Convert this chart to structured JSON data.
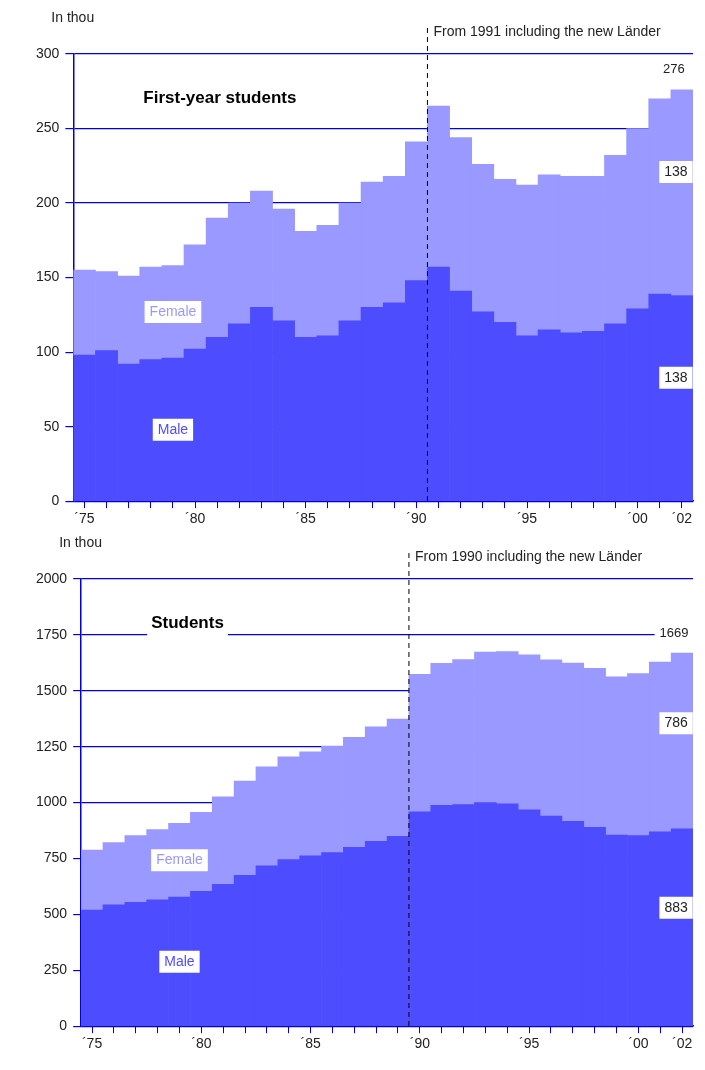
{
  "chart_data": [
    {
      "type": "bar",
      "title": "First-year students",
      "ylabel": "In thou",
      "stacked": true,
      "grid": "y",
      "x": [
        "1975",
        "1976",
        "1977",
        "1978",
        "1979",
        "1980",
        "1981",
        "1982",
        "1983",
        "1984",
        "1985",
        "1986",
        "1987",
        "1988",
        "1989",
        "1990",
        "1991",
        "1992",
        "1993",
        "1994",
        "1995",
        "1996",
        "1997",
        "1998",
        "1999",
        "2000",
        "2001",
        "2002"
      ],
      "xlim": [
        "1974-07",
        "2002-07"
      ],
      "xticks": [
        {
          "value": "1975",
          "label": "´75"
        },
        {
          "value": "1976",
          "label": null
        },
        {
          "value": "1977",
          "label": null
        },
        {
          "value": "1978",
          "label": null
        },
        {
          "value": "1979",
          "label": null
        },
        {
          "value": "1980",
          "label": "´80"
        },
        {
          "value": "1981",
          "label": null
        },
        {
          "value": "1982",
          "label": null
        },
        {
          "value": "1983",
          "label": null
        },
        {
          "value": "1984",
          "label": null
        },
        {
          "value": "1985",
          "label": "´85"
        },
        {
          "value": "1986",
          "label": null
        },
        {
          "value": "1987",
          "label": null
        },
        {
          "value": "1988",
          "label": null
        },
        {
          "value": "1989",
          "label": null
        },
        {
          "value": "1990",
          "label": "´90"
        },
        {
          "value": "1991",
          "label": null
        },
        {
          "value": "1992",
          "label": null
        },
        {
          "value": "1993",
          "label": null
        },
        {
          "value": "1994",
          "label": null
        },
        {
          "value": "1995",
          "label": "´95"
        },
        {
          "value": "1996",
          "label": null
        },
        {
          "value": "1997",
          "label": null
        },
        {
          "value": "1998",
          "label": null
        },
        {
          "value": "1999",
          "label": null
        },
        {
          "value": "2000",
          "label": "´00"
        },
        {
          "value": "2001",
          "label": null
        },
        {
          "value": "2002",
          "label": "´02"
        }
      ],
      "ylim": [
        0,
        300
      ],
      "yticks": [
        0,
        50,
        100,
        150,
        200,
        250,
        300
      ],
      "ref_lines": [
        {
          "axis": "x",
          "value": "1990-07",
          "label": "From 1991 including the new Länder",
          "line_style": "dashed",
          "color": "#000000"
        }
      ],
      "series": [
        {
          "name": "Male",
          "color": "#4d4dff",
          "values": [
            98,
            101,
            92,
            95,
            96,
            102,
            110,
            119,
            130,
            121,
            110,
            111,
            121,
            130,
            133,
            148,
            157,
            141,
            127,
            120,
            111,
            115,
            113,
            114,
            119,
            129,
            139,
            138
          ],
          "value_labels": [
            null,
            null,
            null,
            null,
            null,
            null,
            null,
            null,
            null,
            null,
            null,
            null,
            null,
            null,
            null,
            null,
            null,
            null,
            null,
            null,
            null,
            null,
            null,
            null,
            null,
            null,
            null,
            "138"
          ]
        },
        {
          "name": "Female",
          "color": "#9999ff",
          "values": [
            57,
            53,
            59,
            62,
            62,
            70,
            80,
            81,
            78,
            75,
            71,
            74,
            79,
            84,
            85,
            93,
            108,
            103,
            99,
            96,
            101,
            104,
            105,
            104,
            113,
            121,
            131,
            138
          ],
          "value_labels": [
            null,
            null,
            null,
            null,
            null,
            null,
            null,
            null,
            null,
            null,
            null,
            null,
            null,
            null,
            null,
            null,
            null,
            null,
            null,
            null,
            null,
            null,
            null,
            null,
            null,
            null,
            null,
            "138"
          ]
        }
      ],
      "totals": [
        null,
        null,
        null,
        null,
        null,
        null,
        null,
        null,
        null,
        null,
        null,
        null,
        null,
        null,
        null,
        null,
        null,
        null,
        null,
        null,
        null,
        null,
        null,
        null,
        null,
        null,
        null,
        "276"
      ]
    },
    {
      "type": "bar",
      "title": "Students",
      "ylabel": "In thou",
      "stacked": true,
      "grid": "y",
      "x": [
        "1975",
        "1976",
        "1977",
        "1978",
        "1979",
        "1980",
        "1981",
        "1982",
        "1983",
        "1984",
        "1985",
        "1986",
        "1987",
        "1988",
        "1989",
        "1990",
        "1991",
        "1992",
        "1993",
        "1994",
        "1995",
        "1996",
        "1997",
        "1998",
        "1999",
        "2000",
        "2001",
        "2002"
      ],
      "xlim": [
        "1974-07",
        "2002-07"
      ],
      "xticks": [
        {
          "value": "1975",
          "label": "´75"
        },
        {
          "value": "1976",
          "label": null
        },
        {
          "value": "1977",
          "label": null
        },
        {
          "value": "1978",
          "label": null
        },
        {
          "value": "1979",
          "label": null
        },
        {
          "value": "1980",
          "label": "´80"
        },
        {
          "value": "1981",
          "label": null
        },
        {
          "value": "1982",
          "label": null
        },
        {
          "value": "1983",
          "label": null
        },
        {
          "value": "1984",
          "label": null
        },
        {
          "value": "1985",
          "label": "´85"
        },
        {
          "value": "1986",
          "label": null
        },
        {
          "value": "1987",
          "label": null
        },
        {
          "value": "1988",
          "label": null
        },
        {
          "value": "1989",
          "label": null
        },
        {
          "value": "1990",
          "label": "´90"
        },
        {
          "value": "1991",
          "label": null
        },
        {
          "value": "1992",
          "label": null
        },
        {
          "value": "1993",
          "label": null
        },
        {
          "value": "1994",
          "label": null
        },
        {
          "value": "1995",
          "label": "´95"
        },
        {
          "value": "1996",
          "label": null
        },
        {
          "value": "1997",
          "label": null
        },
        {
          "value": "1998",
          "label": null
        },
        {
          "value": "1999",
          "label": null
        },
        {
          "value": "2000",
          "label": "´00"
        },
        {
          "value": "2001",
          "label": null
        },
        {
          "value": "2002",
          "label": "´02"
        }
      ],
      "ylim": [
        0,
        2000
      ],
      "yticks": [
        0,
        250,
        500,
        750,
        1000,
        1250,
        1500,
        1750,
        2000
      ],
      "ref_lines": [
        {
          "axis": "x",
          "value": "1989-07",
          "label": "From 1990 including the new Länder",
          "line_style": "dashed",
          "color": "#000000"
        }
      ],
      "series": [
        {
          "name": "Male",
          "color": "#4d4dff",
          "values": [
            519,
            543,
            554,
            565,
            577,
            603,
            635,
            675,
            717,
            745,
            762,
            776,
            800,
            827,
            849,
            959,
            988,
            991,
            1000,
            994,
            968,
            940,
            916,
            889,
            855,
            852,
            869,
            883
          ],
          "value_labels": [
            null,
            null,
            null,
            null,
            null,
            null,
            null,
            null,
            null,
            null,
            null,
            null,
            null,
            null,
            null,
            null,
            null,
            null,
            null,
            null,
            null,
            null,
            null,
            null,
            null,
            null,
            null,
            "883"
          ]
        },
        {
          "name": "Female",
          "color": "#9999ff",
          "values": [
            269,
            278,
            298,
            314,
            330,
            354,
            391,
            421,
            443,
            460,
            465,
            477,
            492,
            512,
            524,
            615,
            635,
            649,
            673,
            681,
            693,
            698,
            708,
            711,
            708,
            725,
            759,
            786
          ],
          "value_labels": [
            null,
            null,
            null,
            null,
            null,
            null,
            null,
            null,
            null,
            null,
            null,
            null,
            null,
            null,
            null,
            null,
            null,
            null,
            null,
            null,
            null,
            null,
            null,
            null,
            null,
            null,
            null,
            "786"
          ]
        }
      ],
      "totals": [
        null,
        null,
        null,
        null,
        null,
        null,
        null,
        null,
        null,
        null,
        null,
        null,
        null,
        null,
        null,
        null,
        null,
        null,
        null,
        null,
        null,
        null,
        null,
        null,
        null,
        null,
        null,
        "1669"
      ]
    }
  ]
}
